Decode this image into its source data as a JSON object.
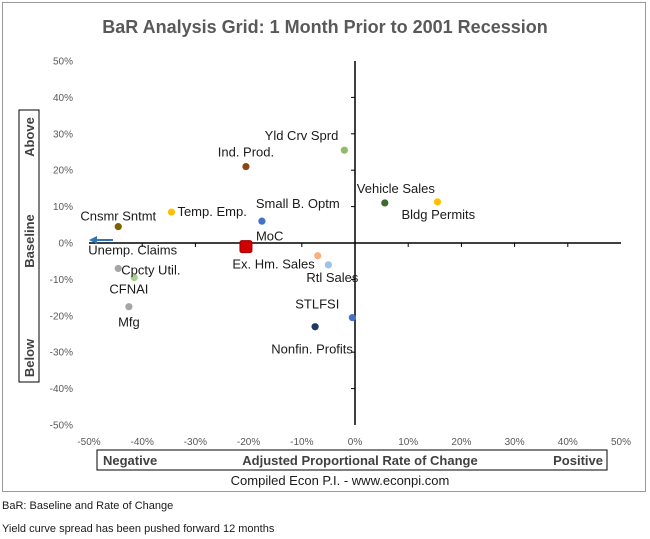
{
  "chart_data": {
    "type": "scatter",
    "title": "BaR Analysis Grid: 1 Month Prior to 2001 Recession",
    "xlabel": "Adjusted Proportional Rate of Change",
    "x_left_label": "Negative",
    "x_right_label": "Positive",
    "y_labels": {
      "top": "Above",
      "middle": "Baseline",
      "bottom": "Below"
    },
    "source": "Compiled Econ P.I. - www.econpi.com",
    "xlim": [
      -50,
      50
    ],
    "ylim": [
      -50,
      50
    ],
    "x_ticks": [
      "-50%",
      "-40%",
      "-30%",
      "-20%",
      "-10%",
      "0%",
      "10%",
      "20%",
      "30%",
      "40%",
      "50%"
    ],
    "y_ticks": [
      "50%",
      "40%",
      "30%",
      "20%",
      "10%",
      "0%",
      "-10%",
      "-20%",
      "-30%",
      "-40%",
      "-50%"
    ],
    "grid": false,
    "points": [
      {
        "label": "Yld Crv Sprd",
        "x": -2,
        "y": 25.5,
        "color": "#8fbc6b"
      },
      {
        "label": "Ind. Prod.",
        "x": -20.5,
        "y": 21,
        "color": "#8b4513"
      },
      {
        "label": "Vehicle Sales",
        "x": 5.6,
        "y": 11,
        "color": "#3d6b2b"
      },
      {
        "label": "Bldg Permits",
        "x": 15.5,
        "y": 11.3,
        "color": "#ffc000"
      },
      {
        "label": "Temp. Emp.",
        "x": -34.5,
        "y": 8.5,
        "color": "#ffc000"
      },
      {
        "label": "Small B. Optm",
        "x": -17.5,
        "y": 6,
        "color": "#4472c4"
      },
      {
        "label": "Cnsmr Sntmt",
        "x": -44.5,
        "y": 4.5,
        "color": "#7f6000"
      },
      {
        "label": "MoC",
        "x": -20.5,
        "y": -1,
        "color": "#d00000",
        "marker": "square"
      },
      {
        "label": "Ex. Hm. Sales",
        "x": -7,
        "y": -3.5,
        "color": "#f4b183"
      },
      {
        "label": "Rtl Sales",
        "x": -5,
        "y": -6,
        "color": "#9dc3e6"
      },
      {
        "label": "Unemp. Claims",
        "x": -44.5,
        "y": -7,
        "color": "#a6a6a6"
      },
      {
        "label": "Cpcty Util.",
        "x": -41.5,
        "y": -9.5,
        "color": "#a9d18e"
      },
      {
        "label": "CFNAI",
        "x": -42.5,
        "y": -17.5,
        "color": "#a6a6a6"
      },
      {
        "label": "STLFSI",
        "x": -0.5,
        "y": -20.5,
        "color": "#4472c4"
      },
      {
        "label": "Nonfin. Profits",
        "x": -7.5,
        "y": -23,
        "color": "#1f3864"
      }
    ],
    "colors": {
      "axis_line": "#000000",
      "arrow": "#2e75b6",
      "tick_text": "#595959",
      "moc_label": "#c00000"
    }
  },
  "notes": [
    "BaR: Baseline and Rate of Change",
    "Yield curve spread has been pushed forward 12 months"
  ]
}
